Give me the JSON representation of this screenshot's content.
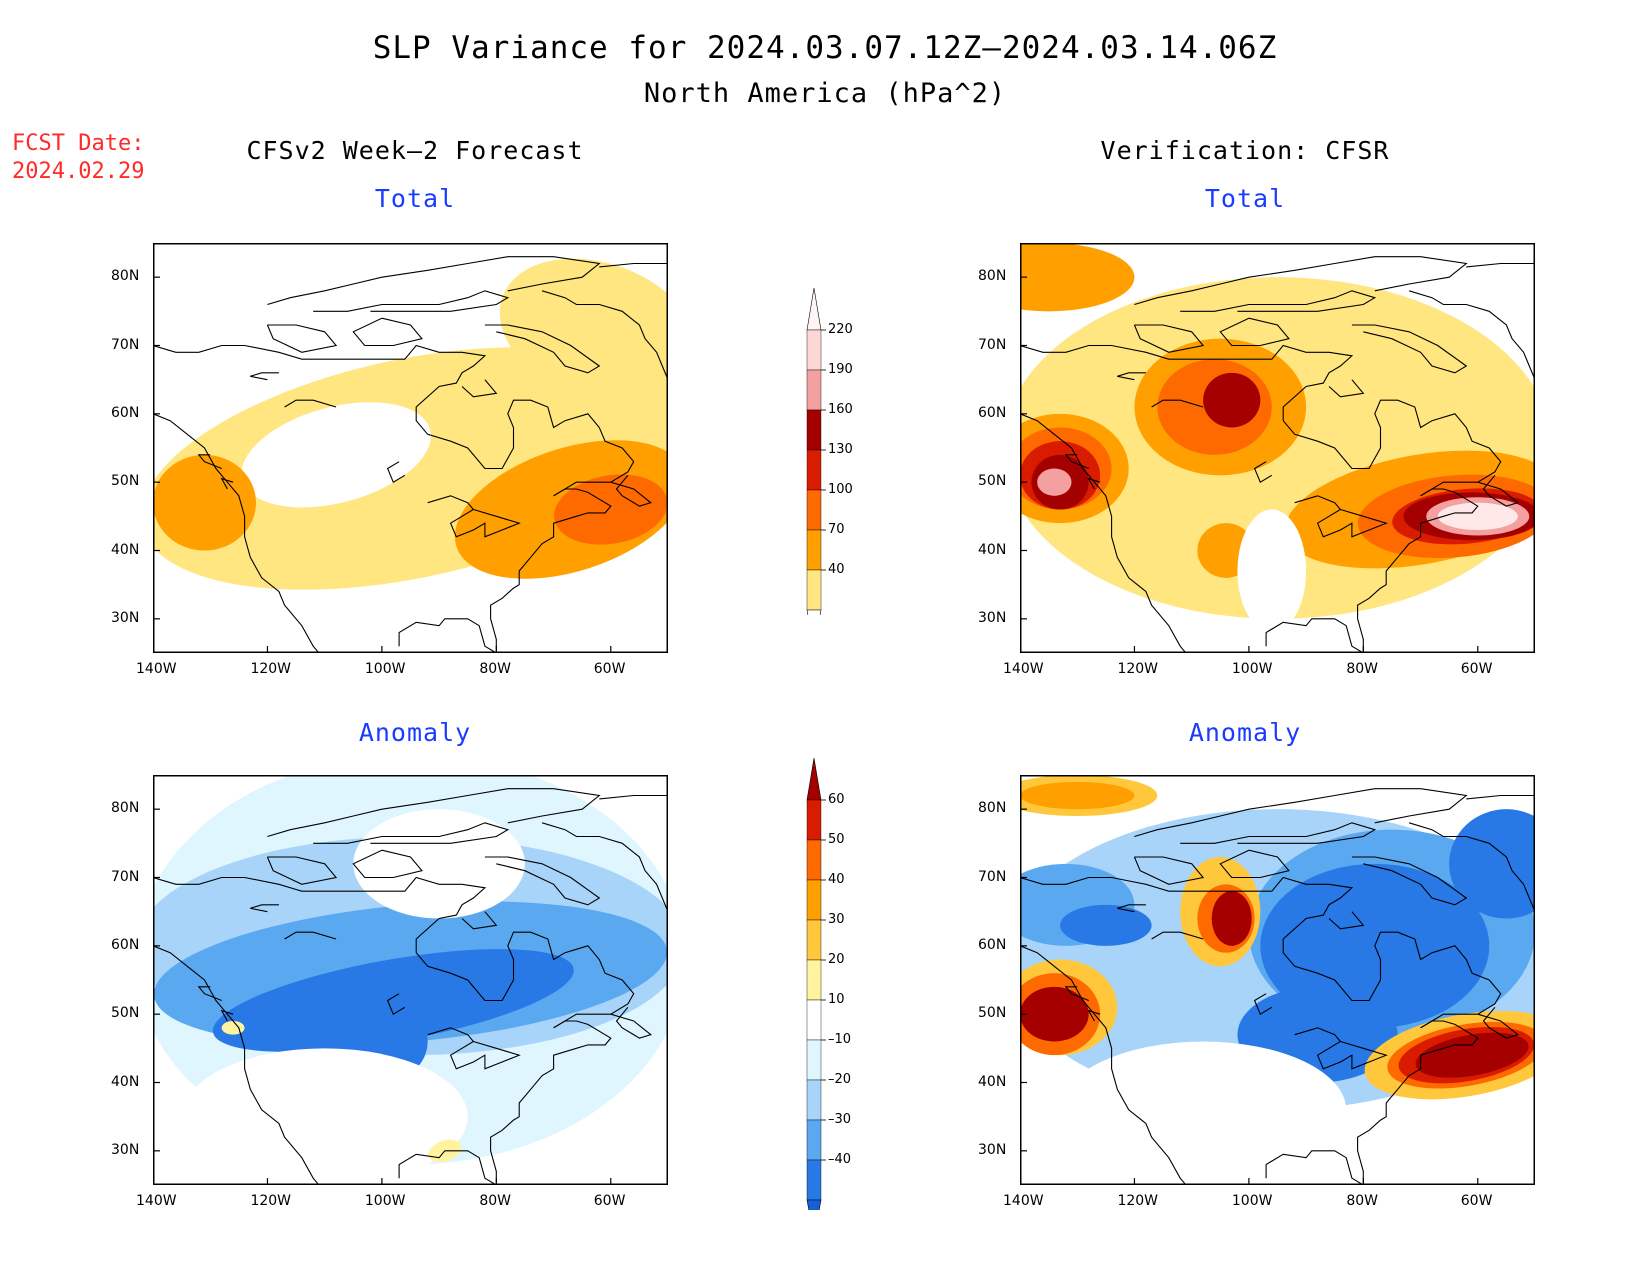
{
  "title": "SLP Variance for 2024.03.07.12Z–2024.03.14.06Z",
  "subtitle": "North America (hPa^2)",
  "fcst_label": "FCST Date:",
  "fcst_value": "2024.02.29",
  "columns": {
    "left": "CFSv2 Week–2 Forecast",
    "right": "Verification: CFSR"
  },
  "panels": {
    "top_left": "Total",
    "top_right": "Total",
    "bottom_left": "Anomaly",
    "bottom_right": "Anomaly"
  },
  "axes": {
    "lat_labels": [
      "80N",
      "70N",
      "60N",
      "50N",
      "40N",
      "30N"
    ],
    "lon_labels": [
      "140W",
      "120W",
      "100W",
      "80W",
      "60W"
    ]
  },
  "colorbars": {
    "total": {
      "labels": [
        "220",
        "190",
        "160",
        "130",
        "100",
        "70",
        "40"
      ],
      "colors": [
        "#ffd6d6",
        "#f4a0a0",
        "#a50000",
        "#d91c00",
        "#ff6a00",
        "#ff9f00",
        "#ffe680"
      ]
    },
    "anomaly": {
      "labels": [
        "60",
        "50",
        "40",
        "30",
        "20",
        "10",
        "–10",
        "–20",
        "–30",
        "–40"
      ],
      "colors_top_arrow": "#a50000",
      "colors": [
        "#d91c00",
        "#ff6a00",
        "#ff9f00",
        "#ffc83c",
        "#fff3a0",
        "#ffffff",
        "#e0f6ff",
        "#a8d4fa",
        "#5aa8f0",
        "#2878e6"
      ],
      "colors_bottom_arrow": "#1560d8"
    }
  },
  "palette": {
    "white": "#ffffff",
    "y1": "#ffe680",
    "o1": "#ff9f00",
    "o2": "#ff6a00",
    "r1": "#d91c00",
    "r2": "#a50000",
    "p1": "#f4a0a0",
    "p2": "#ffe8e8",
    "b1": "#e0f6ff",
    "b2": "#a8d4fa",
    "b3": "#5aa8f0",
    "b4": "#2878e6",
    "b5": "#1560d8",
    "ay1": "#fff3a0",
    "ay2": "#ffc83c",
    "title_blue": "#1a3cff",
    "fcst_red": "#ff2a2a"
  }
}
